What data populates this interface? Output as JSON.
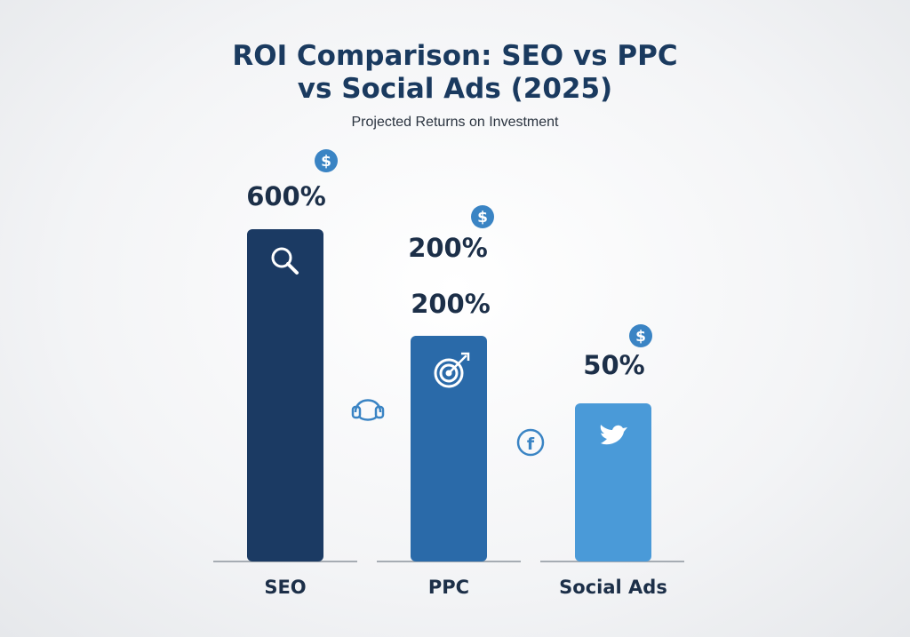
{
  "chart_data": {
    "type": "bar",
    "title_lines": [
      "ROI Comparison: SEO vs PPC",
      "vs Social Ads (2025)"
    ],
    "subtitle": "Projected Returns on Investment",
    "xlabel": "",
    "ylabel": "",
    "grid": false,
    "categories": [
      "SEO",
      "PPC",
      "Social Ads"
    ],
    "values": [
      600,
      200,
      50
    ],
    "value_labels": [
      "600%",
      "200%",
      "50%"
    ],
    "extra_label": "200%",
    "bar_colors": [
      "#1b3a63",
      "#2a6aa9",
      "#4a9ad8"
    ],
    "bar_icons": [
      "magnifier-icon",
      "target-arrow-icon",
      "twitter-bird-icon"
    ],
    "badge_icon": "dollar-icon",
    "between_icons": [
      "headphones-icon",
      "facebook-icon"
    ]
  },
  "colors": {
    "title": "#1a3a5f",
    "text": "#1c2f48",
    "badge": "#3a84c4",
    "baseline": "#a6acb3",
    "outline_icon": "#3a84c4"
  }
}
